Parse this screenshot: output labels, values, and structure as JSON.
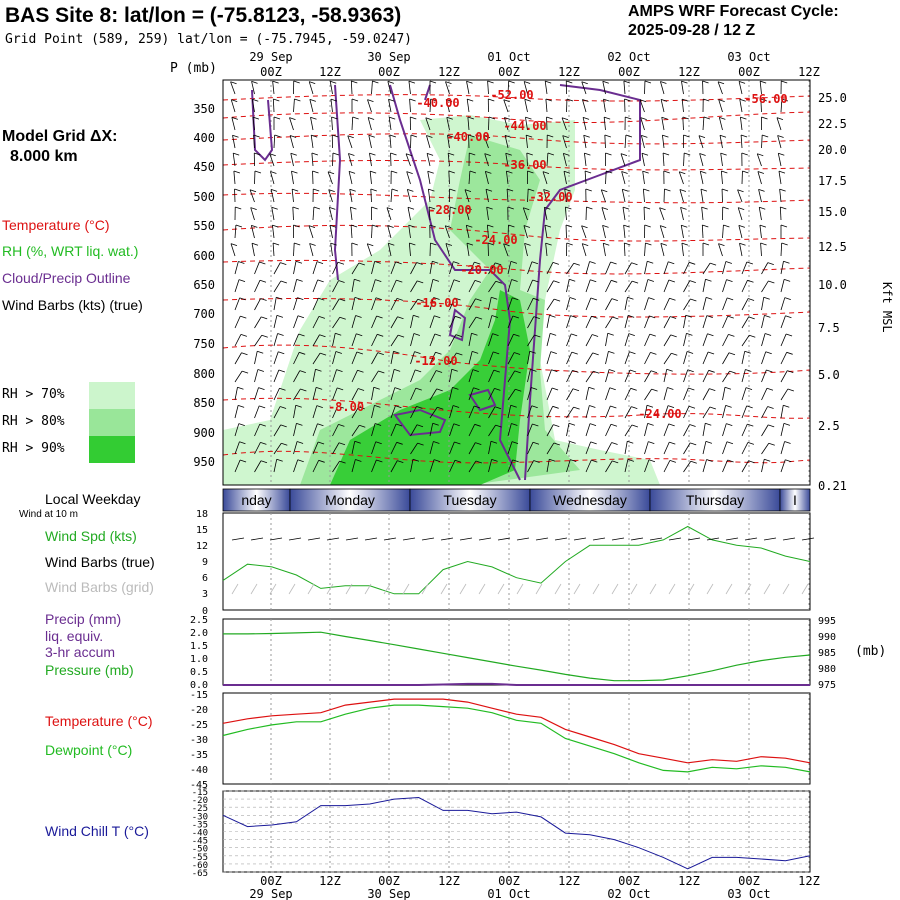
{
  "header": {
    "title": "BAS Site 8:  lat/lon = (-75.8123, -58.9363)",
    "subtitle": "Grid Point (589, 259) lat/lon = (-75.7945, -59.0247)",
    "cycle_line1": "AMPS WRF Forecast Cycle:",
    "cycle_line2": "2025-09-28 / 12  Z"
  },
  "time_axis": {
    "top_dates": [
      "29 Sep",
      "30 Sep",
      "01 Oct",
      "02 Oct",
      "03 Oct"
    ],
    "hour_labels": [
      "00Z",
      "12Z",
      "00Z",
      "12Z",
      "00Z",
      "12Z",
      "00Z",
      "12Z",
      "00Z",
      "12Z"
    ],
    "bottom_dates": [
      "29 Sep",
      "30 Sep",
      "01 Oct",
      "02 Oct",
      "03 Oct"
    ]
  },
  "left_panel": {
    "grid_dx_label": "Model Grid ΔX:",
    "grid_dx_value": "8.000 km",
    "legend": [
      {
        "text": "Temperature (°C)",
        "color": "#dd1111"
      },
      {
        "text": "RH (%, WRT liq. wat.)",
        "color": "#22bb22"
      },
      {
        "text": "Cloud/Precip Outline",
        "color": "#6a2d90"
      },
      {
        "text": "Wind Barbs (kts) (true)",
        "color": "#000000"
      }
    ],
    "rh_legend": [
      {
        "text": "RH > 70%",
        "color": "#ccf5cc"
      },
      {
        "text": "RH > 80%",
        "color": "#99e699"
      },
      {
        "text": "RH > 90%",
        "color": "#33cc33"
      }
    ]
  },
  "cross_section": {
    "p_axis_title": "P (mb)",
    "pressure_labels": [
      "350",
      "400",
      "450",
      "500",
      "550",
      "600",
      "650",
      "700",
      "750",
      "800",
      "850",
      "900",
      "950"
    ],
    "height_labels": [
      "25.0",
      "22.5",
      "20.0",
      "17.5",
      "15.0",
      "12.5",
      "10.0",
      "7.5",
      "5.0",
      "2.5",
      "0.21"
    ],
    "height_axis_title": "Kft MSL",
    "temp_labels": [
      "-52.00",
      "-56.00",
      "-40.00",
      "-44.00",
      "-40.00",
      "-36.00",
      "-32.00",
      "-28.00",
      "-24.00",
      "-20.00",
      "-16.00",
      "-12.00",
      "-8.00",
      "-24.00"
    ],
    "colors": {
      "temp": "#dd1111",
      "cloud": "#6a2d90",
      "rh70": "#ccf5cc",
      "rh80": "#99e699",
      "rh90": "#33cc33"
    }
  },
  "weekday_bar": {
    "title": "Local Weekday",
    "subtitle": "Wind at 10 m",
    "days": [
      "nday",
      "Monday",
      "Tuesday",
      "Wednesday",
      "Thursday",
      "I"
    ]
  },
  "chart_data": [
    {
      "type": "line",
      "name": "wind",
      "labels": {
        "spd": "Wind Spd (kts)",
        "barbs_true": "Wind Barbs (true)",
        "barbs_grid": "Wind Barbs (grid)"
      },
      "y_ticks": [
        "18",
        "15",
        "12",
        "9",
        "6",
        "3",
        "0"
      ],
      "ylim": [
        0,
        18
      ],
      "x_hours": [
        0,
        6,
        12,
        18,
        24,
        30,
        36,
        42,
        48,
        54,
        60,
        66,
        72,
        78,
        84,
        90,
        96,
        102,
        108,
        114,
        120,
        126,
        132,
        138,
        144
      ],
      "series": [
        {
          "name": "Wind Spd (kts)",
          "color": "#22aa22",
          "values": [
            5.5,
            8.5,
            8,
            6.5,
            4,
            4.5,
            4.5,
            3,
            3,
            7.5,
            9,
            8,
            6,
            5,
            9,
            12,
            12,
            12,
            13,
            15.5,
            13,
            12,
            11.5,
            10,
            9
          ]
        }
      ]
    },
    {
      "type": "line",
      "name": "precip_pressure",
      "labels": {
        "precip": "Precip (mm)",
        "liq": "liq. equiv.",
        "accum": "3-hr accum",
        "pressure": "Pressure (mb)",
        "right_unit": "(mb)"
      },
      "y_ticks_left": [
        "2.5",
        "2.0",
        "1.5",
        "1.0",
        "0.5",
        "0.0"
      ],
      "y_ticks_right": [
        "995",
        "990",
        "985",
        "980",
        "975"
      ],
      "ylim_right": [
        975,
        995
      ],
      "x_hours": [
        0,
        6,
        12,
        18,
        24,
        30,
        36,
        42,
        48,
        54,
        60,
        66,
        72,
        78,
        84,
        90,
        96,
        102,
        108,
        114,
        120,
        126,
        132,
        138,
        144
      ],
      "series": [
        {
          "name": "Pressure (mb)",
          "color": "#22aa22",
          "values": [
            990.5,
            990.5,
            990.6,
            990.8,
            991,
            989.7,
            988.5,
            987.2,
            985.9,
            984.6,
            983.3,
            982,
            980.7,
            979.5,
            978.2,
            977.1,
            976.3,
            976.3,
            976.5,
            977.8,
            979.3,
            981,
            982.4,
            983.4,
            984.1
          ]
        },
        {
          "name": "Precip (mm)",
          "color": "#6a2d90",
          "values": [
            0,
            0,
            0,
            0,
            0,
            0,
            0,
            0,
            0,
            0.02,
            0.04,
            0.04,
            0,
            0,
            0,
            0,
            0,
            0,
            0,
            0,
            0,
            0,
            0,
            0,
            0
          ]
        }
      ]
    },
    {
      "type": "line",
      "name": "temperature",
      "labels": {
        "temp": "Temperature (°C)",
        "dew": "Dewpoint (°C)"
      },
      "y_ticks": [
        "-15",
        "-20",
        "-25",
        "-30",
        "-35",
        "-40",
        "-45"
      ],
      "ylim": [
        -45,
        -15
      ],
      "x_hours": [
        0,
        6,
        12,
        18,
        24,
        30,
        36,
        42,
        48,
        54,
        60,
        66,
        72,
        78,
        84,
        90,
        96,
        102,
        108,
        114,
        120,
        126,
        132,
        138,
        144
      ],
      "series": [
        {
          "name": "Temperature (°C)",
          "color": "#dd1111",
          "values": [
            -25,
            -23.5,
            -22.5,
            -22,
            -21.5,
            -19,
            -18,
            -17,
            -17,
            -17,
            -18,
            -20,
            -22,
            -23,
            -27,
            -29.5,
            -32,
            -35,
            -36.5,
            -38,
            -37,
            -37.5,
            -36,
            -36.5,
            -38
          ]
        },
        {
          "name": "Dewpoint (°C)",
          "color": "#22bb22",
          "values": [
            -29,
            -27,
            -25.5,
            -24.5,
            -24.5,
            -22,
            -20,
            -19,
            -19,
            -19.5,
            -20,
            -21.5,
            -24,
            -25,
            -30,
            -32.5,
            -35,
            -38,
            -40.5,
            -41,
            -39.5,
            -40,
            -39,
            -39.5,
            -41
          ]
        }
      ]
    },
    {
      "type": "line",
      "name": "wind_chill",
      "labels": {
        "wc": "Wind Chill T (°C)"
      },
      "y_ticks": [
        "-15",
        "-20",
        "-25",
        "-30",
        "-35",
        "-40",
        "-45",
        "-50",
        "-55",
        "-60",
        "-65"
      ],
      "ylim": [
        -65,
        -15
      ],
      "x_hours": [
        0,
        6,
        12,
        18,
        24,
        30,
        36,
        42,
        48,
        54,
        60,
        66,
        72,
        78,
        84,
        90,
        96,
        102,
        108,
        114,
        120,
        126,
        132,
        138,
        144
      ],
      "series": [
        {
          "name": "Wind Chill T (°C)",
          "color": "#1a1a99",
          "values": [
            -30,
            -37,
            -36,
            -34,
            -24,
            -24,
            -23,
            -20,
            -19,
            -27,
            -27,
            -29,
            -28,
            -31,
            -41,
            -42,
            -45,
            -50,
            -56,
            -63,
            -56,
            -56,
            -57,
            -58,
            -55
          ]
        }
      ]
    }
  ]
}
